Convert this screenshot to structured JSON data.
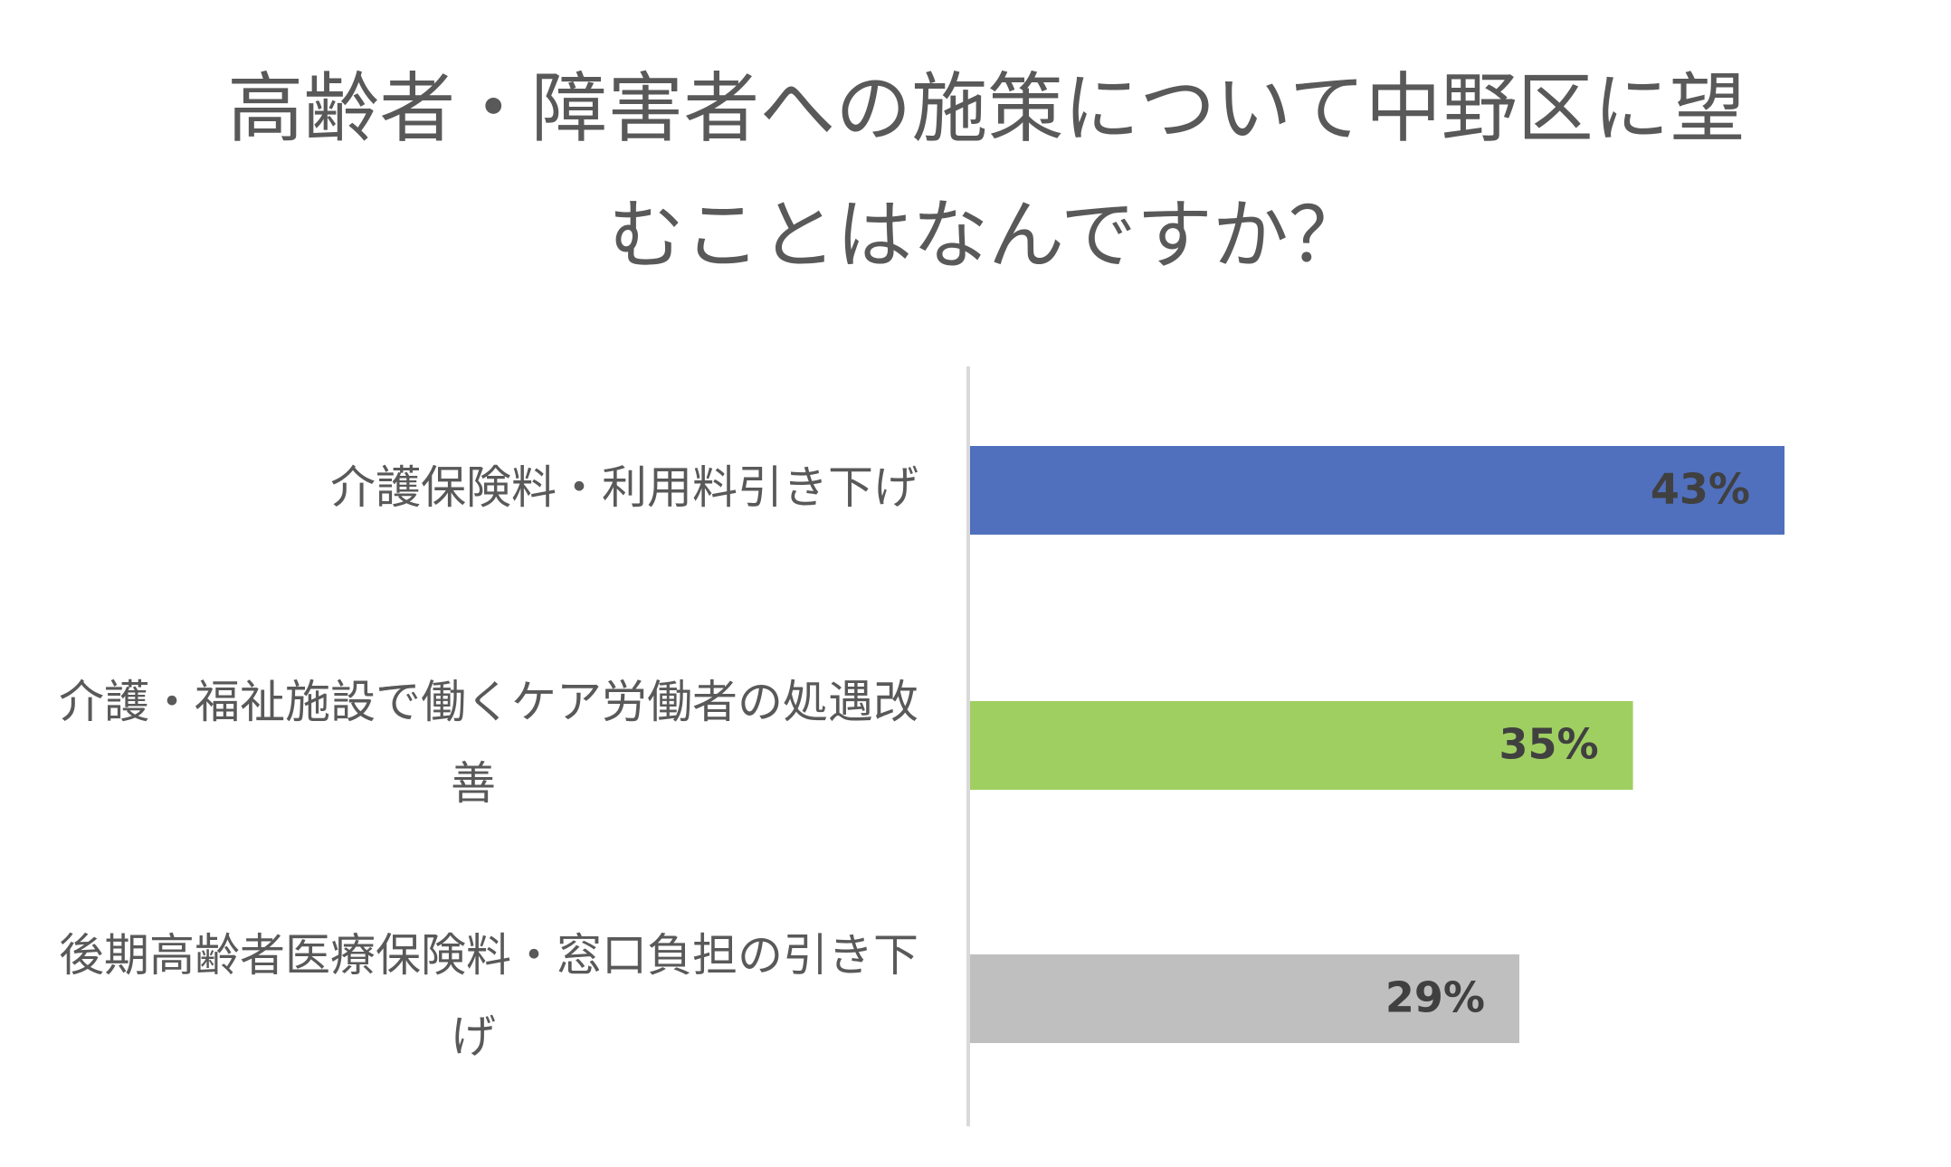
{
  "chart_data": {
    "type": "bar",
    "orientation": "horizontal",
    "title": "高齢者・障害者への施策について中野区に望むことはなんですか？",
    "categories": [
      "介護保険料・利用料引き下げ",
      "介護・福祉施設で働くケア労働者の処遇改善",
      "後期高齢者医療保険料・窓口負担の引き下げ"
    ],
    "values": [
      43,
      35,
      29
    ],
    "value_labels": [
      "43%",
      "35%",
      "29%"
    ],
    "colors": [
      "#5070BE",
      "#9FCF61",
      "#BFBFBF"
    ],
    "xlabel": "",
    "ylabel": "",
    "xlim": [
      0,
      50
    ],
    "grid": false,
    "legend": "none"
  }
}
